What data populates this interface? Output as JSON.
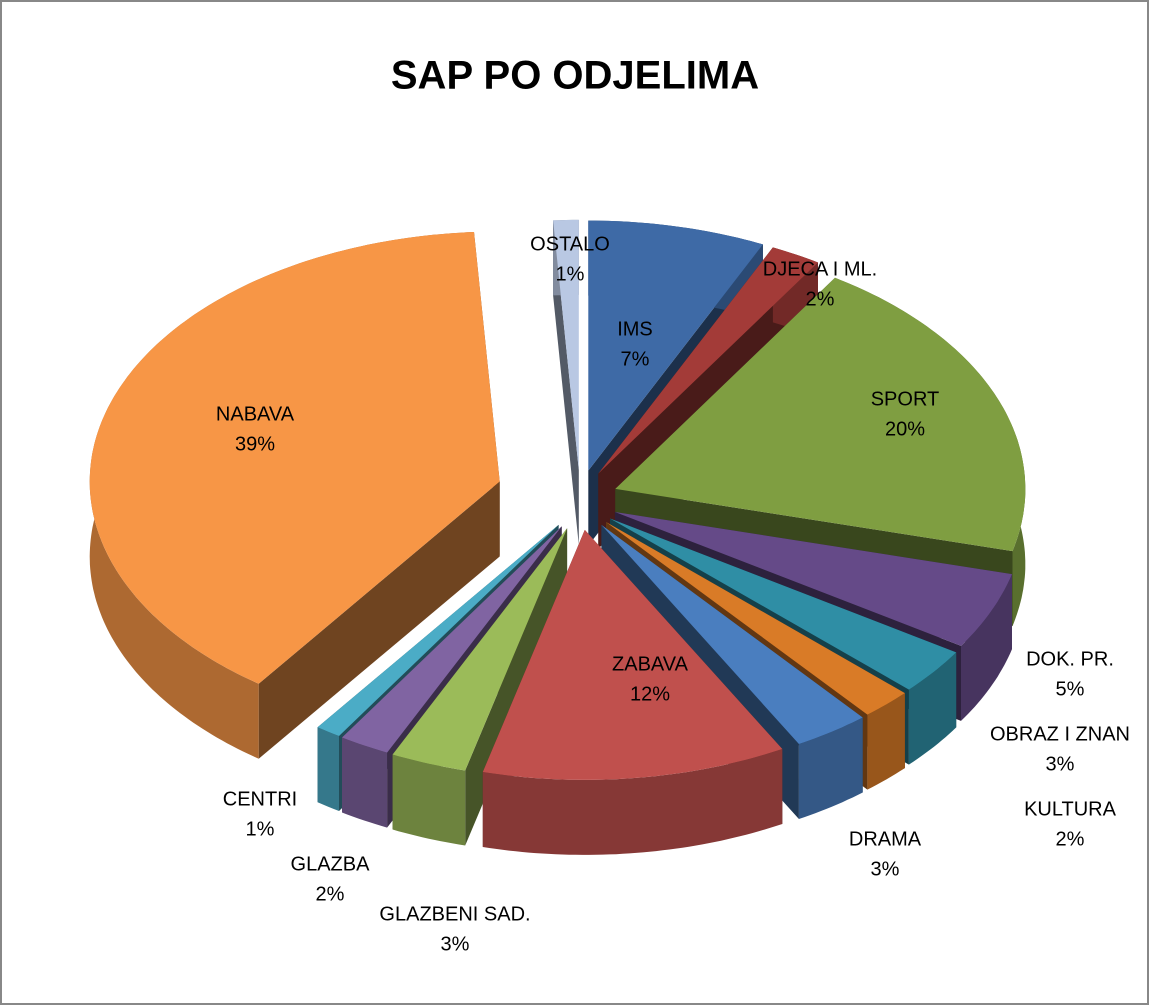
{
  "chart_data": {
    "type": "pie3d",
    "title": "SAP PO ODJELIMA",
    "categories": [
      "IMS",
      "DJECA I ML.",
      "SPORT",
      "DOK. PR.",
      "OBRAZ I ZNAN",
      "KULTURA",
      "DRAMA",
      "ZABAVA",
      "GLAZBENI SAD.",
      "GLAZBA",
      "CENTRI",
      "NABAVA",
      "OSTALO"
    ],
    "values": [
      7,
      2,
      20,
      5,
      3,
      2,
      3,
      12,
      3,
      2,
      1,
      39,
      1
    ],
    "value_labels": [
      "7%",
      "2%",
      "20%",
      "5%",
      "3%",
      "2%",
      "3%",
      "12%",
      "3%",
      "2%",
      "1%",
      "39%",
      "1%"
    ],
    "colors": [
      "#3e6aa6",
      "#a33b38",
      "#7f9e41",
      "#654a88",
      "#2f8ea5",
      "#d97b27",
      "#4a7ebf",
      "#c0504d",
      "#9bbb59",
      "#8064a2",
      "#4bacc6",
      "#f79646",
      "#b9c8e3"
    ]
  }
}
